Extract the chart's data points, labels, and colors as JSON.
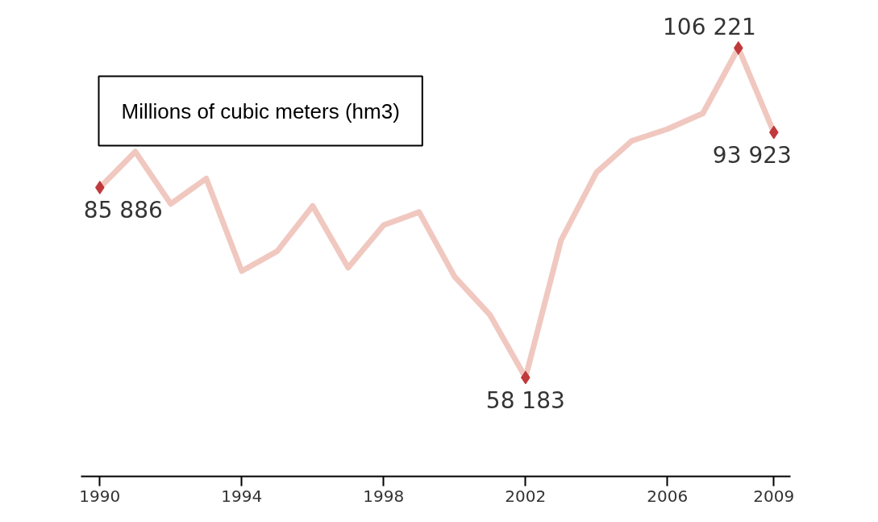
{
  "chart_data": {
    "type": "line",
    "title": "Millions of cubic meters (hm3)",
    "x": [
      1990,
      1991,
      1992,
      1993,
      1994,
      1995,
      1996,
      1997,
      1998,
      1999,
      2000,
      2001,
      2002,
      2003,
      2004,
      2005,
      2006,
      2007,
      2008,
      2009
    ],
    "series": [
      {
        "marker": "none",
        "color": "#f0c8c0",
        "values": [
          85886,
          91100,
          83500,
          87200,
          73700,
          76600,
          83200,
          74200,
          80400,
          82300,
          72900,
          67300,
          58183,
          78200,
          88100,
          92700,
          94400,
          96700,
          106221,
          93923
        ]
      },
      {
        "type": "scatter",
        "marker": "diamond",
        "color": "#c0393b",
        "x": [
          1990,
          2002,
          2008,
          2009
        ],
        "values": [
          85886,
          58183,
          106221,
          93923
        ],
        "value_labels": [
          "85 886",
          "58 183",
          "106 221",
          "93 923"
        ]
      }
    ],
    "xlim": [
      1989.47,
      2009.47
    ],
    "xticks": [
      1990,
      1994,
      1998,
      2002,
      2006,
      2009
    ],
    "tick_labels": "x",
    "grid": false
  }
}
